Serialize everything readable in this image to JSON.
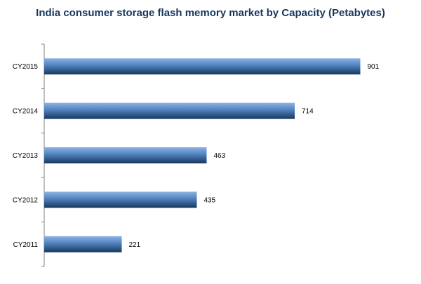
{
  "chart_data": {
    "type": "bar",
    "orientation": "horizontal",
    "title": "India consumer storage flash memory market by Capacity (Petabytes)",
    "categories": [
      "CY2015",
      "CY2014",
      "CY2013",
      "CY2012",
      "CY2011"
    ],
    "values": [
      901,
      714,
      463,
      435,
      221
    ],
    "xlim": [
      0,
      1000
    ],
    "grid": false,
    "colors": {
      "bar_light": "#8db3e2",
      "bar_mid": "#4f81bd",
      "bar_dark": "#17375e",
      "title": "#17375e"
    }
  }
}
